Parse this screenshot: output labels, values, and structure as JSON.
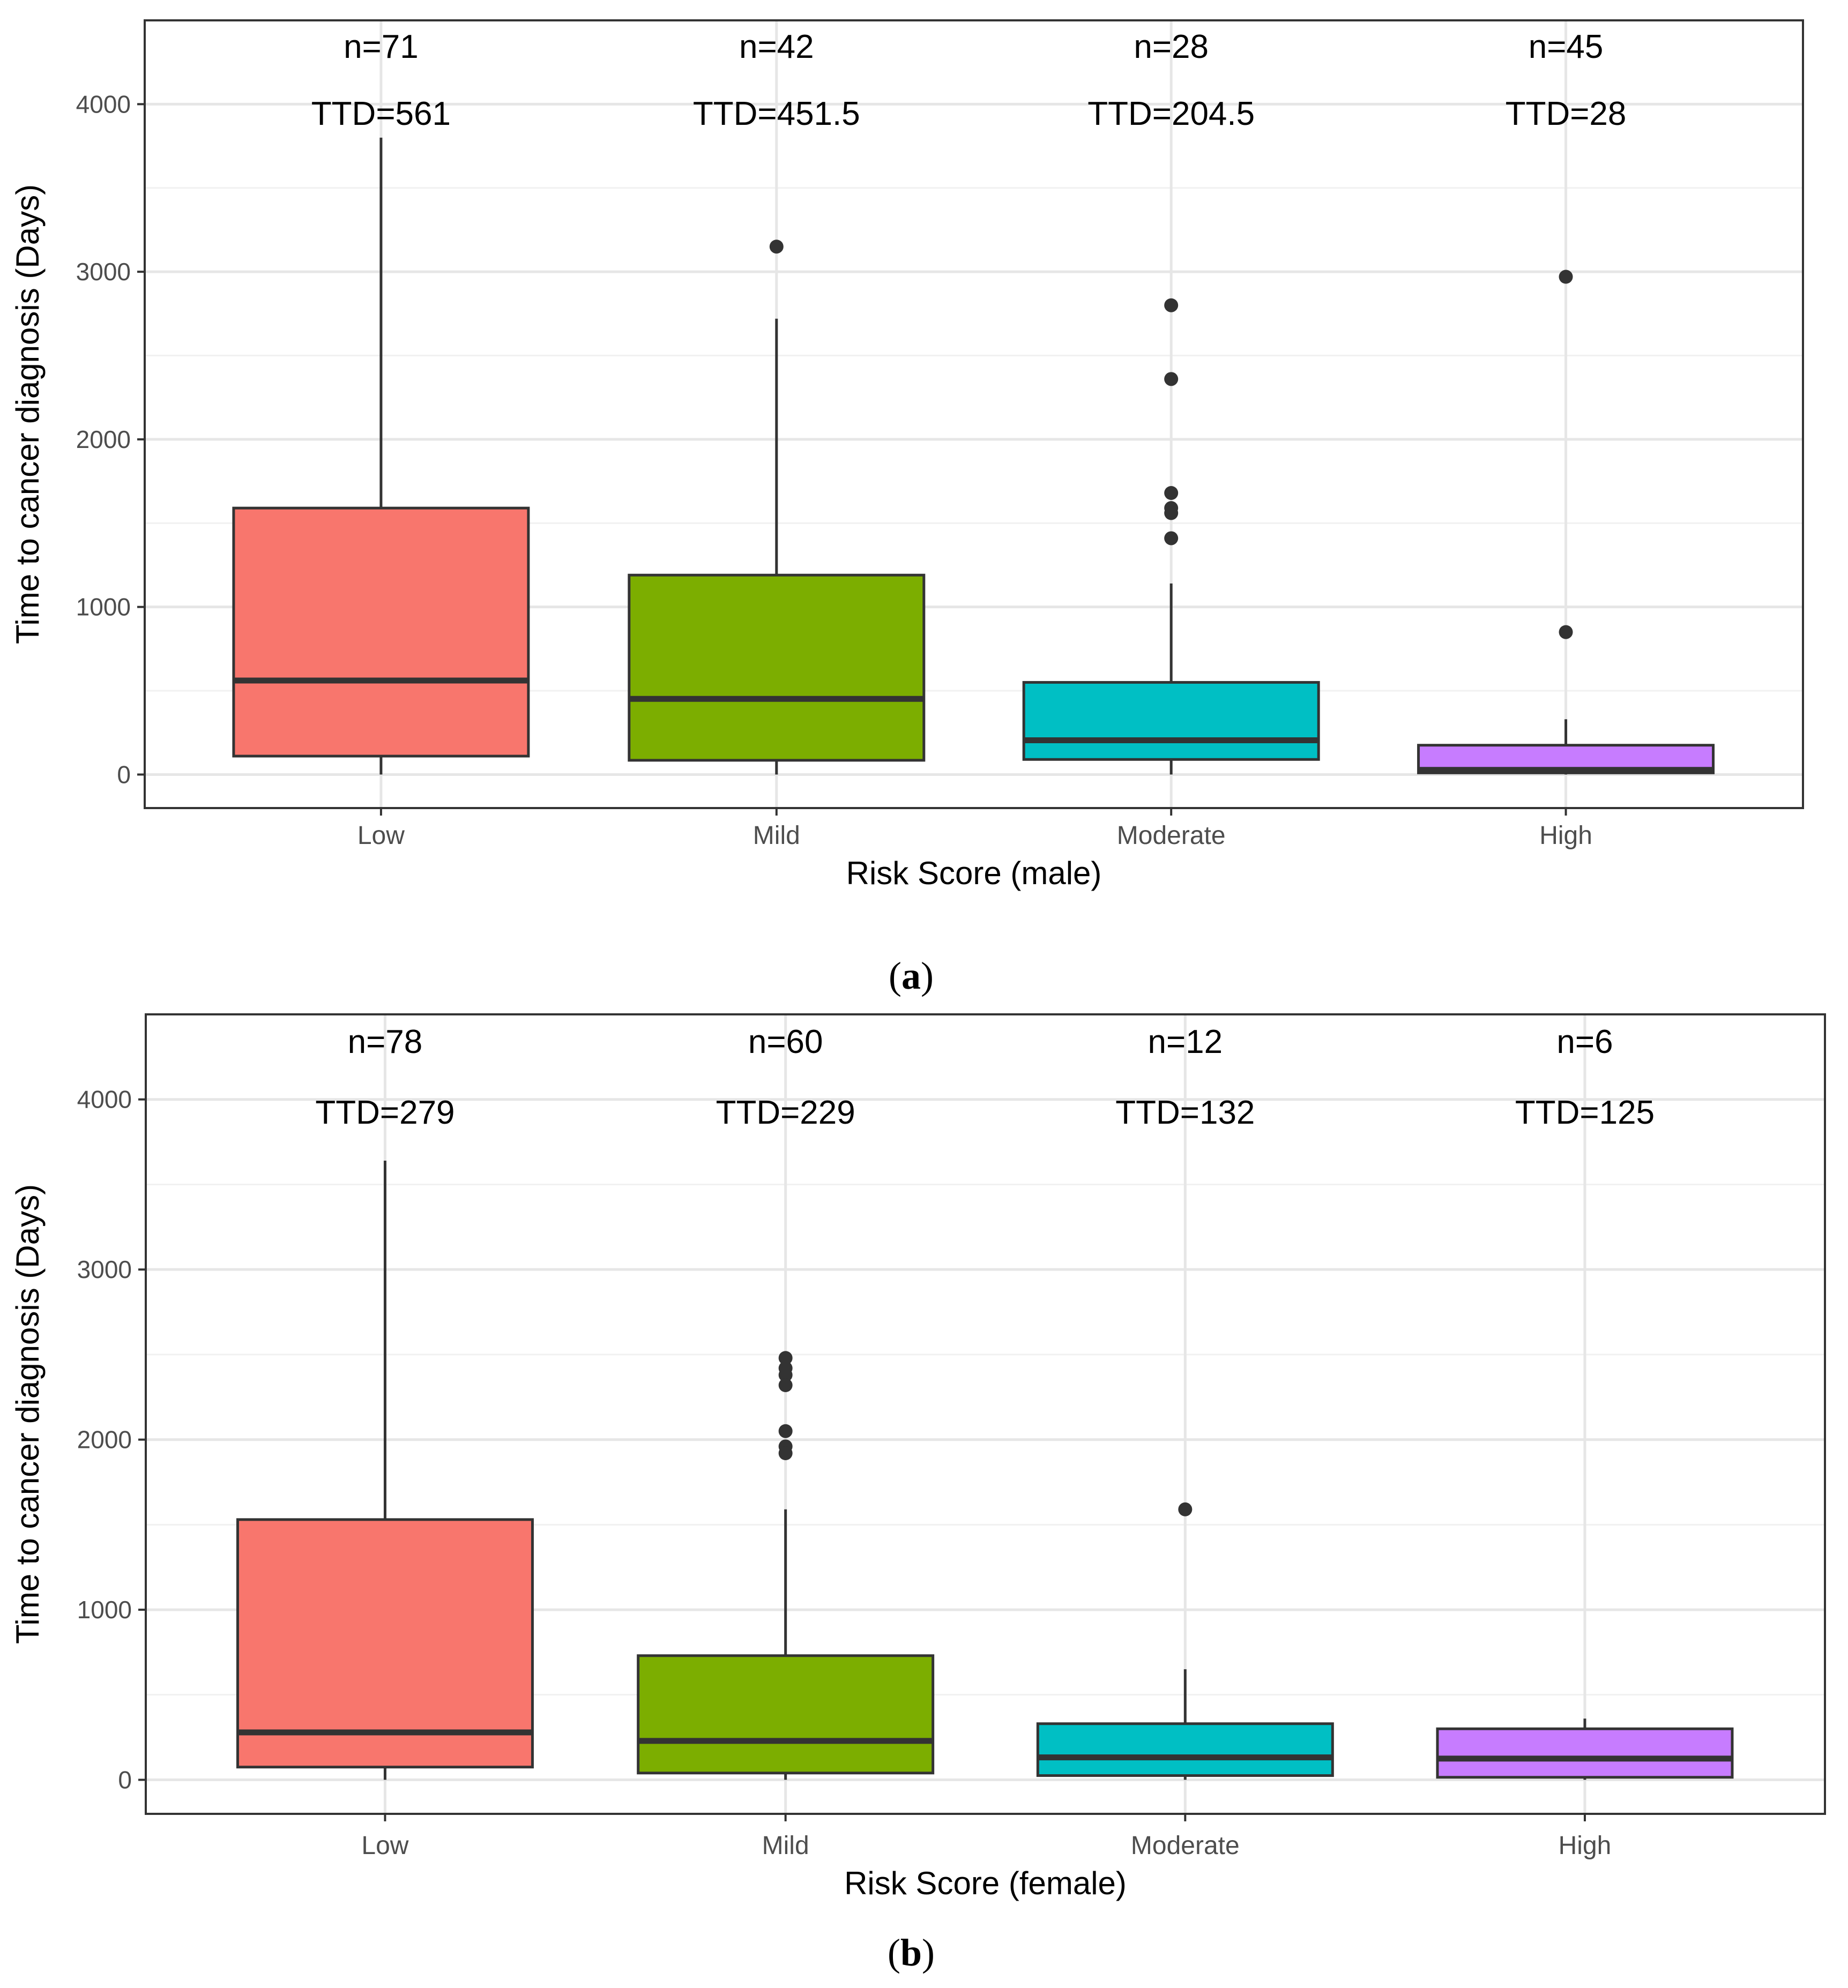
{
  "chart_data": [
    {
      "type": "box",
      "panel_label": "(a)",
      "panel_letter": "a",
      "xlabel": "Risk Score (male)",
      "ylabel": "Time to cancer diagnosis (Days)",
      "ylim": [
        -200,
        4500
      ],
      "yticks": [
        0,
        1000,
        2000,
        3000,
        4000
      ],
      "grid": true,
      "categories": [
        "Low",
        "Mild",
        "Moderate",
        "High"
      ],
      "colors": [
        "#F8766D",
        "#7CAE00",
        "#00BFC4",
        "#C77CFF"
      ],
      "annotations": [
        {
          "n": "n=71",
          "ttd": "TTD=561"
        },
        {
          "n": "n=42",
          "ttd": "TTD=451.5"
        },
        {
          "n": "n=28",
          "ttd": "TTD=204.5"
        },
        {
          "n": "n=45",
          "ttd": "TTD=28"
        }
      ],
      "boxes": [
        {
          "whisker_low": 0,
          "q1": 110,
          "median": 561,
          "q3": 1590,
          "whisker_high": 3800,
          "outliers": []
        },
        {
          "whisker_low": 0,
          "q1": 85,
          "median": 451.5,
          "q3": 1190,
          "whisker_high": 2720,
          "outliers": [
            3150
          ]
        },
        {
          "whisker_low": 0,
          "q1": 90,
          "median": 204.5,
          "q3": 550,
          "whisker_high": 1140,
          "outliers": [
            2800,
            2360,
            1680,
            1590,
            1560,
            1410
          ]
        },
        {
          "whisker_low": 0,
          "q1": 10,
          "median": 28,
          "q3": 175,
          "whisker_high": 330,
          "outliers": [
            2970,
            850
          ]
        }
      ]
    },
    {
      "type": "box",
      "panel_label": "(b)",
      "panel_letter": "b",
      "xlabel": "Risk Score (female)",
      "ylabel": "Time to cancer diagnosis (Days)",
      "ylim": [
        -200,
        4500
      ],
      "yticks": [
        0,
        1000,
        2000,
        3000,
        4000
      ],
      "grid": true,
      "categories": [
        "Low",
        "Mild",
        "Moderate",
        "High"
      ],
      "colors": [
        "#F8766D",
        "#7CAE00",
        "#00BFC4",
        "#C77CFF"
      ],
      "annotations": [
        {
          "n": "n=78",
          "ttd": "TTD=279"
        },
        {
          "n": "n=60",
          "ttd": "TTD=229"
        },
        {
          "n": "n=12",
          "ttd": "TTD=132"
        },
        {
          "n": "n=6",
          "ttd": "TTD=125"
        }
      ],
      "boxes": [
        {
          "whisker_low": 0,
          "q1": 75,
          "median": 279,
          "q3": 1530,
          "whisker_high": 3640,
          "outliers": []
        },
        {
          "whisker_low": 0,
          "q1": 40,
          "median": 229,
          "q3": 730,
          "whisker_high": 1590,
          "outliers": [
            2480,
            2420,
            2380,
            2320,
            2050,
            1960,
            1920
          ]
        },
        {
          "whisker_low": 0,
          "q1": 25,
          "median": 132,
          "q3": 330,
          "whisker_high": 650,
          "outliers": [
            1590
          ]
        },
        {
          "whisker_low": 0,
          "q1": 15,
          "median": 125,
          "q3": 300,
          "whisker_high": 360,
          "outliers": []
        }
      ]
    }
  ]
}
